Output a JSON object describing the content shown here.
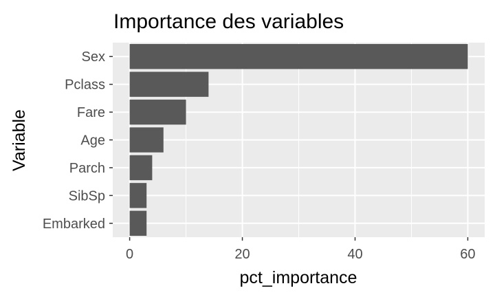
{
  "chart_data": {
    "type": "bar",
    "orientation": "horizontal",
    "title": "Importance des variables",
    "xlabel": "pct_importance",
    "ylabel": "Variable",
    "categories": [
      "Sex",
      "Pclass",
      "Fare",
      "Age",
      "Parch",
      "SibSp",
      "Embarked"
    ],
    "values": [
      60,
      14,
      10,
      6,
      4,
      3,
      3
    ],
    "xlim": [
      -3,
      63
    ],
    "xticks": [
      0,
      20,
      40,
      60
    ],
    "grid": true,
    "colors": {
      "panel": "#ebebeb",
      "bar": "#595959",
      "grid": "#ffffff",
      "tick_text": "#4d4d4d",
      "tick_mark": "#333333"
    }
  }
}
